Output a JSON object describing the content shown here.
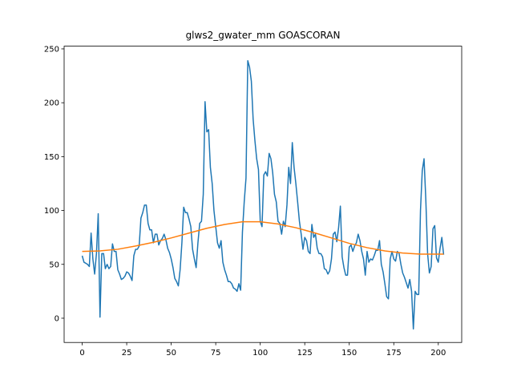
{
  "chart_data": {
    "type": "line",
    "title": "glws2_gwater_mm GOASCORAN",
    "x": [
      0,
      1,
      2,
      3,
      4,
      5,
      6,
      7,
      8,
      9,
      10,
      11,
      12,
      13,
      14,
      15,
      16,
      17,
      18,
      19,
      20,
      21,
      22,
      23,
      24,
      25,
      26,
      27,
      28,
      29,
      30,
      31,
      32,
      33,
      34,
      35,
      36,
      37,
      38,
      39,
      40,
      41,
      42,
      43,
      44,
      45,
      46,
      47,
      48,
      49,
      50,
      51,
      52,
      53,
      54,
      55,
      56,
      57,
      58,
      59,
      60,
      61,
      62,
      63,
      64,
      65,
      66,
      67,
      68,
      69,
      70,
      71,
      72,
      73,
      74,
      75,
      76,
      77,
      78,
      79,
      80,
      81,
      82,
      83,
      84,
      85,
      86,
      87,
      88,
      89,
      90,
      91,
      92,
      93,
      94,
      95,
      96,
      97,
      98,
      99,
      100,
      101,
      102,
      103,
      104,
      105,
      106,
      107,
      108,
      109,
      110,
      111,
      112,
      113,
      114,
      115,
      116,
      117,
      118,
      119,
      120,
      121,
      122,
      123,
      124,
      125,
      126,
      127,
      128,
      129,
      130,
      131,
      132,
      133,
      134,
      135,
      136,
      137,
      138,
      139,
      140,
      141,
      142,
      143,
      144,
      145,
      146,
      147,
      148,
      149,
      150,
      151,
      152,
      153,
      154,
      155,
      156,
      157,
      158,
      159,
      160,
      161,
      162,
      163,
      164,
      165,
      166,
      167,
      168,
      169,
      170,
      171,
      172,
      173,
      174,
      175,
      176,
      177,
      178,
      179,
      180,
      181,
      182,
      183,
      184,
      185,
      186,
      187,
      188,
      189,
      190,
      191,
      192,
      193,
      194,
      195,
      196,
      197,
      198,
      199,
      200,
      201,
      202,
      203
    ],
    "series": [
      {
        "color": "#1f77b4",
        "values": [
          58,
          52,
          51,
          50,
          48,
          79,
          55,
          41,
          60,
          97,
          1,
          60,
          60,
          46,
          50,
          46,
          48,
          69,
          62,
          62,
          45,
          41,
          36,
          37,
          39,
          43,
          42,
          39,
          35,
          58,
          64,
          64,
          67,
          93,
          98,
          105,
          105,
          88,
          82,
          82,
          70,
          78,
          78,
          68,
          72,
          74,
          78,
          73,
          65,
          61,
          55,
          47,
          37,
          34,
          30,
          45,
          70,
          103,
          98,
          98,
          92,
          85,
          64,
          55,
          47,
          70,
          88,
          90,
          115,
          201,
          173,
          175,
          140,
          125,
          100,
          85,
          70,
          65,
          72,
          52,
          45,
          40,
          34,
          34,
          32,
          28,
          27,
          25,
          32,
          26,
          80,
          108,
          130,
          239,
          233,
          220,
          185,
          165,
          148,
          138,
          90,
          85,
          133,
          136,
          132,
          153,
          148,
          135,
          115,
          108,
          90,
          88,
          78,
          90,
          85,
          105,
          140,
          125,
          163,
          140,
          125,
          108,
          90,
          78,
          64,
          75,
          72,
          62,
          60,
          87,
          75,
          78,
          65,
          60,
          60,
          57,
          46,
          45,
          41,
          44,
          55,
          78,
          80,
          71,
          84,
          104,
          57,
          47,
          40,
          40,
          66,
          68,
          62,
          67,
          70,
          78,
          72,
          62,
          55,
          40,
          62,
          52,
          55,
          54,
          58,
          63,
          63,
          72,
          50,
          43,
          32,
          20,
          18,
          55,
          62,
          55,
          53,
          62,
          60,
          50,
          42,
          38,
          33,
          28,
          36,
          25,
          -10,
          25,
          22,
          22,
          100,
          137,
          148,
          110,
          60,
          42,
          48,
          83,
          86,
          56,
          52,
          65,
          75,
          59
        ]
      },
      {
        "color": "#ff7f0e",
        "x": [
          0,
          10,
          20,
          30,
          40,
          50,
          60,
          70,
          80,
          90,
          100,
          110,
          120,
          130,
          140,
          150,
          160,
          170,
          180,
          190,
          200,
          203
        ],
        "values": [
          62,
          62.5,
          64,
          67,
          70.5,
          74.5,
          79,
          83.5,
          87,
          89.5,
          89.5,
          87.5,
          84,
          79.5,
          74.5,
          69.5,
          65.5,
          62.5,
          60.5,
          59.5,
          59.5,
          59.5
        ]
      }
    ],
    "xlim": [
      -10.15,
      213.15
    ],
    "xticks": [
      0,
      25,
      50,
      75,
      100,
      125,
      150,
      175,
      200
    ],
    "ylim": [
      -22.5,
      252.5
    ],
    "yticks": [
      0,
      50,
      100,
      150,
      200,
      250
    ]
  }
}
